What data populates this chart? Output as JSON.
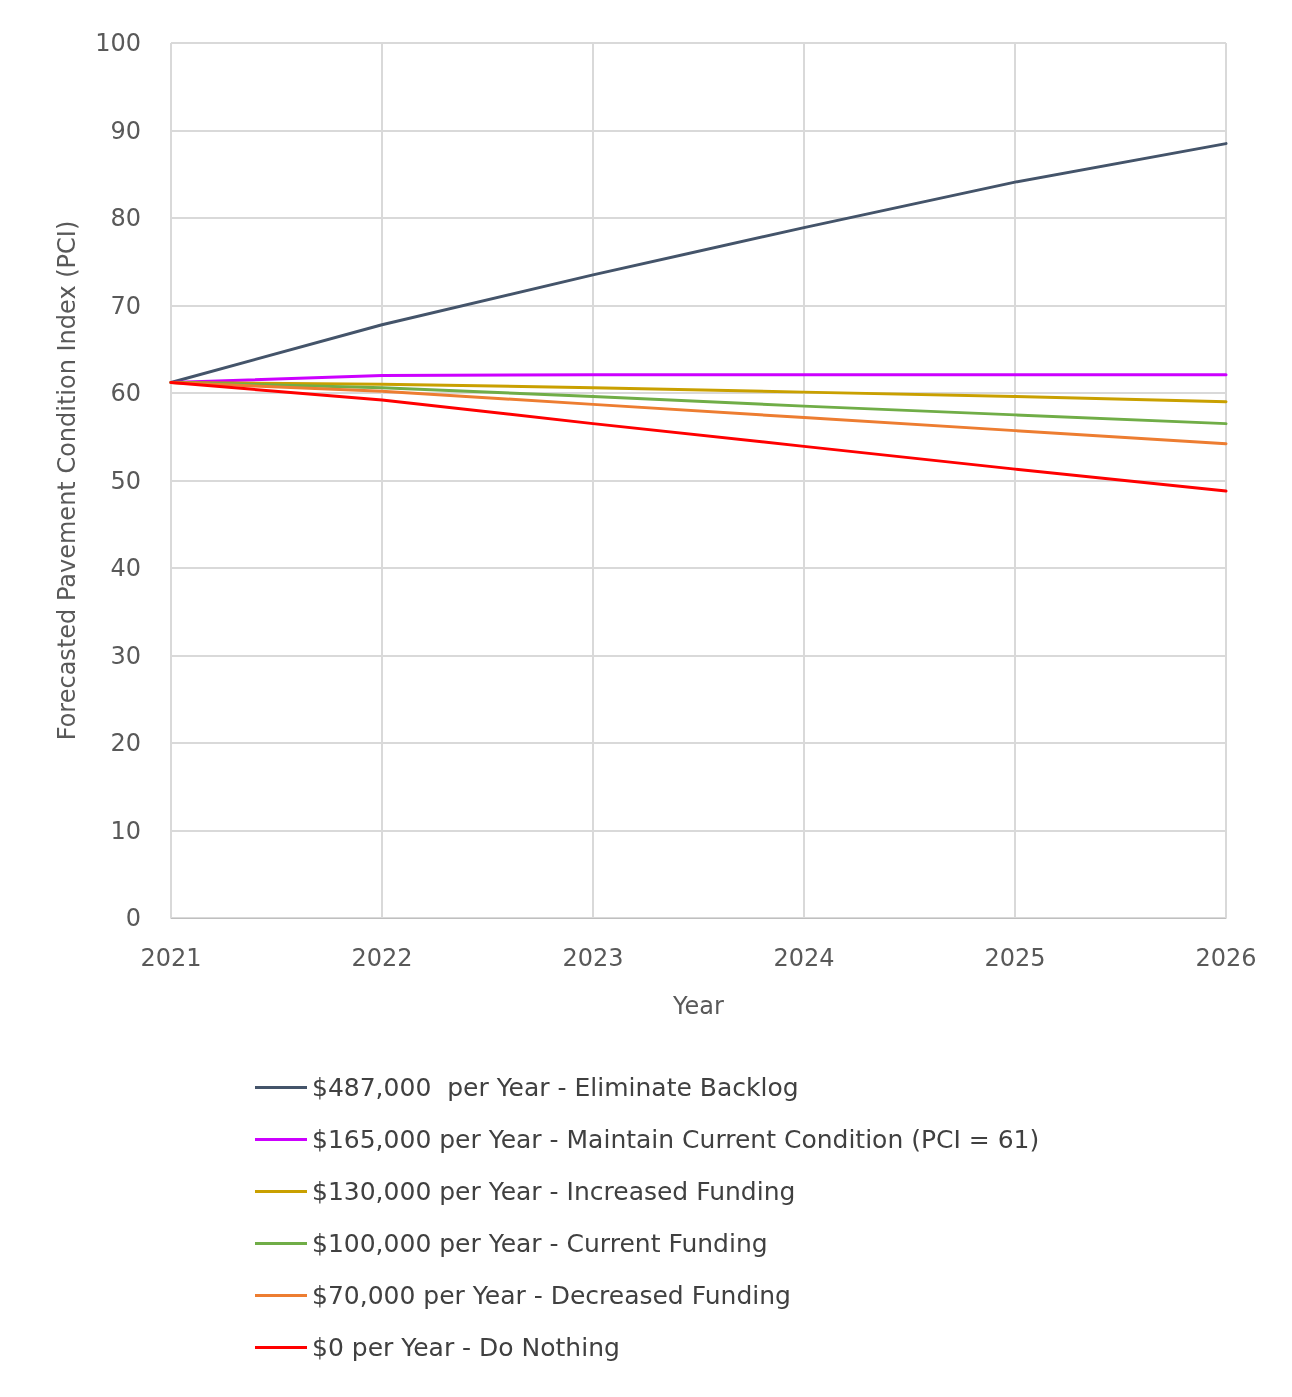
{
  "chart_data": {
    "type": "line",
    "xlabel": "Year",
    "ylabel": "Forecasted Pavement Condition Index (PCI)",
    "x": [
      2021,
      2022,
      2023,
      2024,
      2025,
      2026
    ],
    "xlim": [
      2021,
      2026
    ],
    "xticks": [
      2021,
      2022,
      2023,
      2024,
      2025,
      2026
    ],
    "ylim": [
      0,
      100
    ],
    "yticks": [
      0,
      10,
      20,
      30,
      40,
      50,
      60,
      70,
      80,
      90,
      100
    ],
    "grid": true,
    "legend": "bottom",
    "marker": "none",
    "line_style": "solid",
    "series": [
      {
        "name": "$487,000  per Year - Eliminate Backlog",
        "color": "#44546a",
        "values": [
          61.2,
          67.8,
          73.5,
          78.9,
          84.1,
          88.5
        ]
      },
      {
        "name": "$165,000 per Year - Maintain Current Condition (PCI = 61)",
        "color": "#cc00ff",
        "values": [
          61.2,
          62.0,
          62.1,
          62.1,
          62.1,
          62.1
        ]
      },
      {
        "name": "$130,000 per Year - Increased Funding",
        "color": "#c9a000",
        "values": [
          61.2,
          61.0,
          60.6,
          60.1,
          59.6,
          59.0
        ]
      },
      {
        "name": "$100,000 per Year - Current Funding",
        "color": "#70ad47",
        "values": [
          61.2,
          60.6,
          59.6,
          58.5,
          57.5,
          56.5
        ]
      },
      {
        "name": "$70,000 per Year - Decreased Funding",
        "color": "#ed7d31",
        "values": [
          61.2,
          60.2,
          58.7,
          57.2,
          55.7,
          54.2
        ]
      },
      {
        "name": "$0 per Year - Do Nothing",
        "color": "#ff0000",
        "values": [
          61.2,
          59.2,
          56.5,
          53.9,
          51.3,
          48.8
        ]
      }
    ]
  }
}
